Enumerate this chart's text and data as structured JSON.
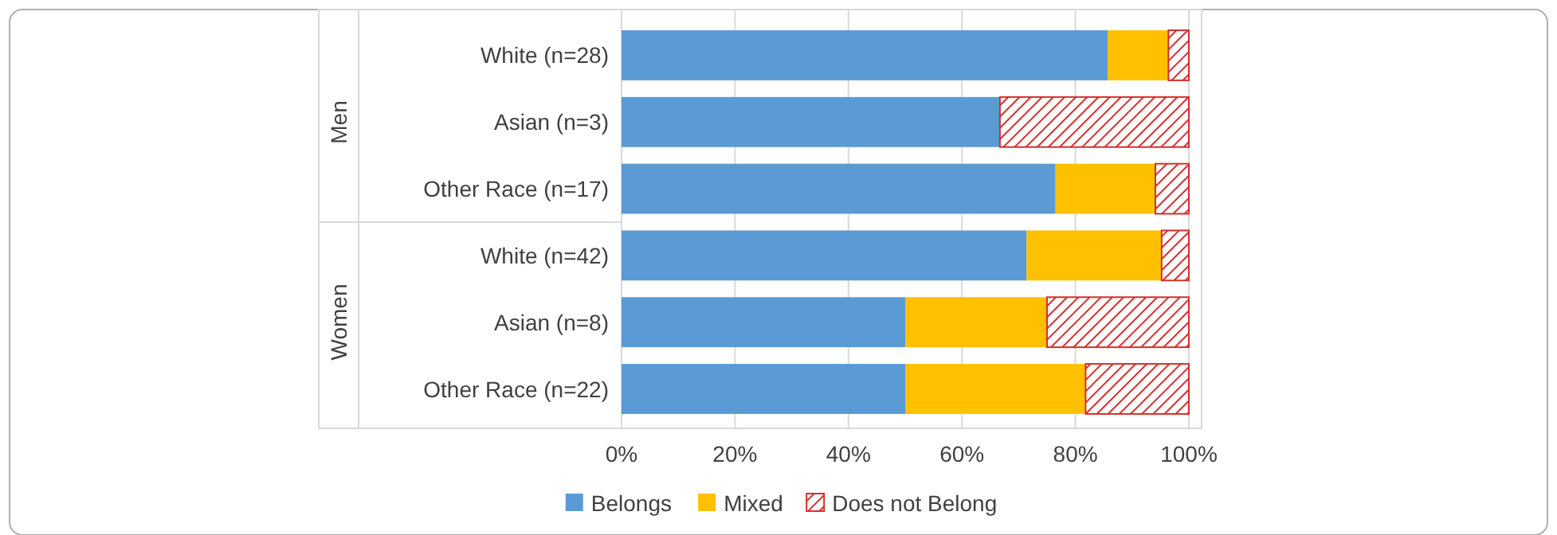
{
  "chart_data": {
    "type": "bar",
    "orientation": "horizontal",
    "stacked": true,
    "categories": [
      "White (n=28)",
      "Asian (n=3)",
      "Other Race (n=17)",
      "White (n=42)",
      "Asian (n=8)",
      "Other Race (n=22)"
    ],
    "series": [
      {
        "name": "Belongs",
        "color": "#5b9bd5",
        "values": [
          85.7,
          66.7,
          76.5,
          71.4,
          50,
          50
        ]
      },
      {
        "name": "Mixed",
        "color": "#ffc000",
        "values": [
          10.7,
          0,
          17.6,
          23.8,
          25,
          31.8
        ]
      },
      {
        "name": "Does not Belong",
        "color": "#d32f2f",
        "values": [
          3.6,
          33.3,
          5.9,
          4.8,
          25,
          18.2
        ]
      }
    ],
    "xlim": [
      0,
      100
    ],
    "xticks": [
      {
        "value": 0,
        "label": "0%"
      },
      {
        "value": 20,
        "label": "20%"
      },
      {
        "value": 40,
        "label": "40%"
      },
      {
        "value": 60,
        "label": "60%"
      },
      {
        "value": 80,
        "label": "80%"
      },
      {
        "value": 100,
        "label": "100%"
      }
    ],
    "grid": "x",
    "legend": "bottom",
    "annotations": [
      "Men",
      "Women"
    ]
  }
}
